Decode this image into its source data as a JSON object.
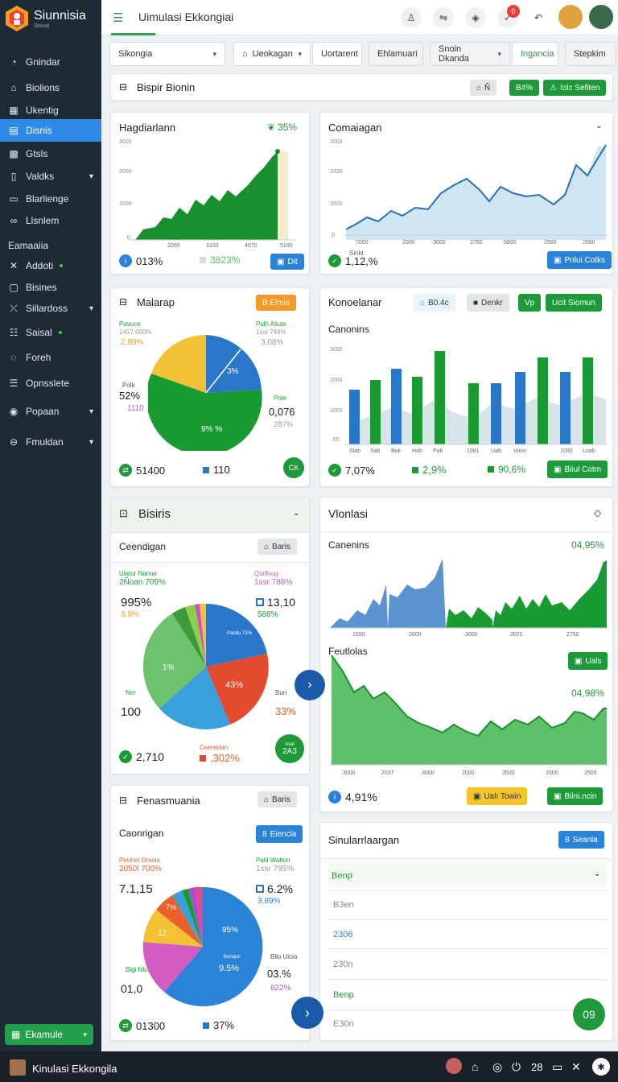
{
  "app": {
    "brand": "Siunnisia",
    "brand_sub": "Siouai",
    "title": "Uimulasi Ekkongiai"
  },
  "sidebar": {
    "items": [
      {
        "label": "Gnindar",
        "icon": "dashboard-icon"
      },
      {
        "label": "Biolions",
        "icon": "home-icon"
      },
      {
        "label": "Ukentig",
        "icon": "grid-icon"
      },
      {
        "label": "Disnis",
        "icon": "list-icon"
      },
      {
        "label": "Gtsls",
        "icon": "calculator-icon"
      },
      {
        "label": "Valdks",
        "icon": "book-icon"
      },
      {
        "label": "Blarlienge",
        "icon": "file-icon"
      },
      {
        "label": "Llsnlem",
        "icon": "link-icon"
      },
      {
        "label": "Addoti",
        "icon": "close-icon"
      },
      {
        "label": "Bisines",
        "icon": "box-icon"
      },
      {
        "label": "Sillardoss",
        "icon": "cross-icon"
      },
      {
        "label": "Saisal",
        "icon": "table-icon"
      },
      {
        "label": "Foreh",
        "icon": "chat-icon"
      },
      {
        "label": "Opnsslete",
        "icon": "lines-icon"
      },
      {
        "label": "Popaan",
        "icon": "info-icon"
      },
      {
        "label": "Fmuldan",
        "icon": "minus-circle-icon"
      }
    ],
    "section": "Eamaaiia",
    "bottom_button": "Ekamule"
  },
  "filters": [
    "Sikongia",
    "Ueokagan",
    "Uortarent",
    "Ehlamuari",
    "Snoin Dkanda",
    "Ingancia",
    "Stepkim"
  ],
  "banner": {
    "title": "Bispir Bionin",
    "btn1": "Ñ",
    "btn2": "B4%",
    "btn3": "Iolc Sefiten"
  },
  "card1": {
    "title": "Hagdiarlann",
    "badge": "35%",
    "yticks": [
      "3000",
      "2000",
      "1000",
      "0"
    ],
    "xticks": [
      "2000",
      "3100",
      "4070",
      "5100"
    ],
    "stat1": "013%",
    "stat2": "3823%",
    "btn": "Dit"
  },
  "card2": {
    "title": "Comaiagan",
    "yticks": [
      "3000",
      "3330",
      "3500",
      "0"
    ],
    "xticks": [
      "7000",
      "2000",
      "3000",
      "2750",
      "5600",
      "2500"
    ],
    "stat_small": "Sinkt",
    "stat": "1,12,%",
    "btn": "Pnlui Cotks"
  },
  "card3": {
    "title": "Malarap",
    "btn": "B Elmis",
    "tl_small": "Pavuce",
    "tl_pct": "1457 000%",
    "tl_sub": "2.80%",
    "tr_small": "Pulh Aliute",
    "tr_pct": "1ssr 748%",
    "tr_sub": "3.08%",
    "ml_small": "Polk",
    "ml_pct": "52%",
    "ml_sub": "1110",
    "mr_small": "Pnie",
    "mr_val": "0,076",
    "mr_sub": "2B7%",
    "slice1": "3%",
    "slice2": "9% %",
    "stat1": "51400",
    "stat2": "110",
    "btn2": "CK"
  },
  "card4": {
    "title": "Konoelanar",
    "btn1": "B0.4c",
    "btn2": "Denkr",
    "btn3": "Vp",
    "btn4": "Ucit Siomun",
    "subtitle": "Canonins",
    "yticks": [
      "3000",
      "2000",
      "1000",
      "00"
    ],
    "xticks": [
      "Slab",
      "Sab",
      "Bok",
      "Hab",
      "Pab",
      "1081",
      "Uab",
      "Vono",
      "1000",
      "Loab"
    ],
    "stat": "7,07%",
    "stat2": "2,9%",
    "stat3": "90,6%",
    "btn5": "Biiul Cotm"
  },
  "card5": {
    "title": "Bisiris",
    "subtitle": "Ceendigan",
    "btn": "Baris",
    "tl_small": "Uiatur Namai",
    "tl_pct": "2Ñoan 705%",
    "tr_small": "Quillhog",
    "tr_pct": "1ssr 788%",
    "l_pct": "995%",
    "l_sub": "3.9%",
    "r_pct": "13,10",
    "r_sub": "588%",
    "slice_green": "1%",
    "slice_blue": "Pandu 73%",
    "slice_red": "43%",
    "ll_small": "Ner",
    "ll_val": "100",
    "rr_small": "Buri",
    "rr_val": "33%",
    "stat1": "2,710",
    "stat2_small": "Ceeredan",
    "stat2": ",302%",
    "circle_small": "Avai",
    "circle": "2A3"
  },
  "card6": {
    "title": "Vlonlasi",
    "sub1": "Canenins",
    "val1": "04,95%",
    "xticks1": [
      "1550",
      "2000",
      "3000",
      "2070",
      "2750"
    ],
    "sub2": "Feutlolas",
    "btn": "Uals",
    "val2": "04,98%",
    "xticks2": [
      "3000",
      "2037",
      "3000",
      "2000",
      "3500",
      "2000",
      "2505"
    ],
    "stat": "4,91%",
    "btn2": "Ualı Towin",
    "btn3": "Bilni.ncin"
  },
  "card7": {
    "title": "Fenasmuania",
    "subtitle": "Caonrigan",
    "btn": "Baris",
    "btn2": "Eiencla",
    "tl_small": "Piruhet Oniala",
    "tl_pct": "2050l 700%",
    "tr_small": "Patil Walton",
    "tr_pct": "1ssr 795%",
    "l_val": "7.1,15",
    "r_val": "6.2%",
    "r_sub": "3.89%",
    "slice_orange": "7%",
    "slice_yellow": "12",
    "slice_blue": "95%",
    "slice_blue2_small": "Bonqun",
    "slice_blue2": "9.5%",
    "ll_small": "Blgi Nliue",
    "ll_val": "01,0",
    "rr_small": "Bllo Uicia",
    "rr_val": "03.%",
    "rr_sub": "822%",
    "stat1": "01300",
    "stat2": "37%"
  },
  "card8": {
    "title": "Sinularrlaargan",
    "btn": "Seanla",
    "rows": [
      "Benp",
      "B3en",
      "2306",
      "230n",
      "Benp",
      "E30n"
    ],
    "circle": "09"
  },
  "taskbar": {
    "title": "Kinulasi Ekkongila",
    "time": "28"
  },
  "colors": {
    "green": "#1f9a3a",
    "blue": "#2a83d8",
    "sidebar": "#1f2a37",
    "active": "#2e8ae6"
  }
}
